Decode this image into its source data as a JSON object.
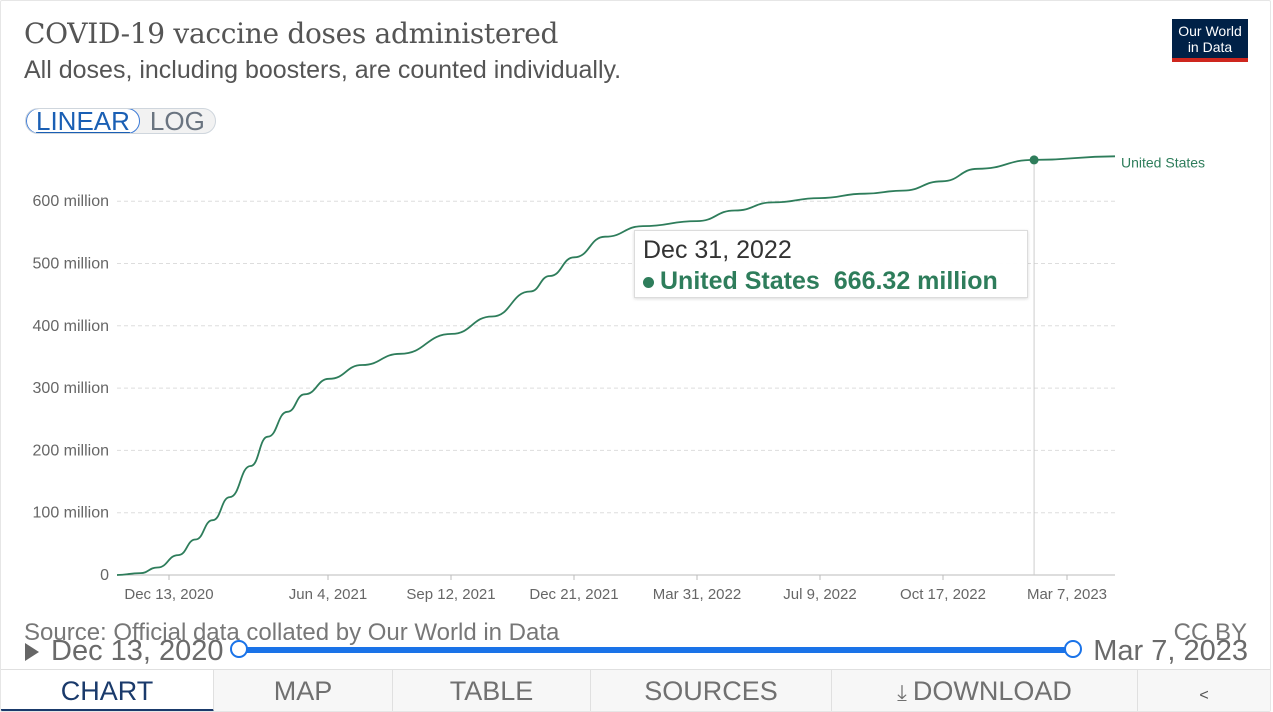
{
  "header": {
    "title": "COVID-19 vaccine doses administered",
    "subtitle": "All doses, including boosters, are counted individually.",
    "logo_line1": "Our World",
    "logo_line2": "in Data"
  },
  "scale_toggle": {
    "linear_label": "LINEAR",
    "log_label": "LOG",
    "selected": "LINEAR"
  },
  "tooltip": {
    "date": "Dec 31, 2022",
    "series": "United States",
    "value": "666.32 million"
  },
  "footer": {
    "source": "Source: Official data collated by Our World in Data",
    "license": "CC BY"
  },
  "timeline": {
    "start": "Dec 13, 2020",
    "end": "Mar 7, 2023"
  },
  "tabs": [
    {
      "label": "CHART",
      "active": true
    },
    {
      "label": "MAP"
    },
    {
      "label": "TABLE"
    },
    {
      "label": "SOURCES"
    },
    {
      "label": "DOWNLOAD"
    },
    {
      "label": ""
    }
  ],
  "icons": {
    "play": "play-icon",
    "download": "download-icon",
    "share": "share-icon"
  },
  "colors": {
    "series": "#2e7d5b",
    "accent": "#1a73e8",
    "logo_bg": "#002147",
    "logo_bar": "#ce261e"
  },
  "chart_data": {
    "type": "line",
    "title": "COVID-19 vaccine doses administered",
    "subtitle": "All doses, including boosters, are counted individually.",
    "y_unit": "million",
    "ylim": [
      0,
      680
    ],
    "y_ticks": [
      0,
      100,
      200,
      300,
      400,
      500,
      600
    ],
    "y_tick_labels": [
      "0",
      "100 million",
      "200 million",
      "300 million",
      "400 million",
      "500 million",
      "600 million"
    ],
    "x_tick_labels": [
      "Dec 13, 2020",
      "Jun 4, 2021",
      "Sep 12, 2021",
      "Dec 21, 2021",
      "Mar 31, 2022",
      "Jul 9, 2022",
      "Oct 17, 2022",
      "Mar 7, 2023"
    ],
    "x_range": [
      "2020-12-13",
      "2023-03-07"
    ],
    "grid": "horizontal dashed",
    "series": [
      {
        "name": "United States",
        "x": [
          "2020-12-13",
          "2021-01-01",
          "2021-01-15",
          "2021-02-01",
          "2021-02-15",
          "2021-03-01",
          "2021-03-15",
          "2021-04-01",
          "2021-04-15",
          "2021-05-01",
          "2021-05-15",
          "2021-06-04",
          "2021-07-01",
          "2021-08-01",
          "2021-09-12",
          "2021-10-15",
          "2021-11-15",
          "2021-12-01",
          "2021-12-21",
          "2022-01-15",
          "2022-02-15",
          "2022-03-31",
          "2022-05-01",
          "2022-06-01",
          "2022-07-09",
          "2022-08-15",
          "2022-09-15",
          "2022-10-17",
          "2022-11-15",
          "2022-12-31",
          "2023-03-07"
        ],
        "values": [
          0,
          3,
          12,
          32,
          57,
          88,
          125,
          175,
          222,
          262,
          290,
          315,
          337,
          355,
          387,
          415,
          455,
          480,
          510,
          543,
          560,
          568,
          585,
          598,
          605,
          612,
          617,
          632,
          652,
          666.32,
          672
        ]
      }
    ],
    "highlight": {
      "x": "2022-12-31",
      "value": 666.32
    },
    "series_label_position": "end of line"
  }
}
